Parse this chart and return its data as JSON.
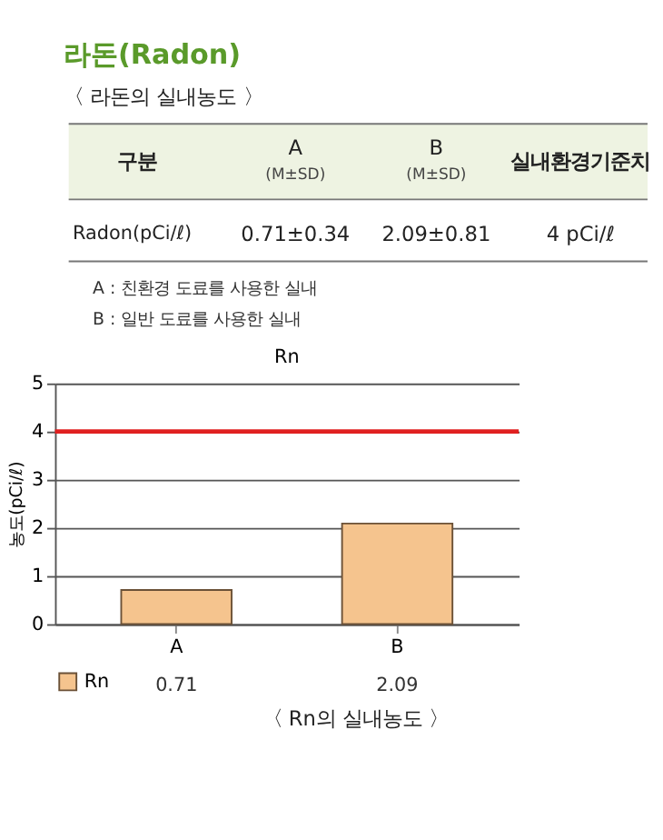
{
  "chart_data": {
    "type": "bar",
    "title": "Rn",
    "ylabel": "농도(pCi/ℓ)",
    "categories": [
      "A",
      "B"
    ],
    "series": [
      {
        "name": "Rn",
        "color": "#f5c48e",
        "values": [
          0.71,
          2.09
        ]
      }
    ],
    "ylim": [
      0,
      5
    ],
    "yticks": [
      0,
      1,
      2,
      3,
      4,
      5
    ],
    "grid": "y",
    "legend": "bottom",
    "data_labels": true,
    "ref_lines": [
      {
        "axis": "y",
        "value": 4,
        "color": "#e02020"
      }
    ],
    "annotations": [
      "라돈(Radon)",
      "〈 라돈의 실내농도 〉",
      "구분",
      "A",
      "(M±SD)",
      "B",
      "(M±SD)",
      "실내환경기준치",
      "Radon(pCi/ℓ)",
      "0.71±0.34",
      "2.09±0.81",
      "4 pCi/ℓ",
      "A : 친환경 도료를 사용한 실내",
      "B : 일반 도료를 사용한 실내",
      "〈 Rn의 실내농도 〉"
    ]
  }
}
